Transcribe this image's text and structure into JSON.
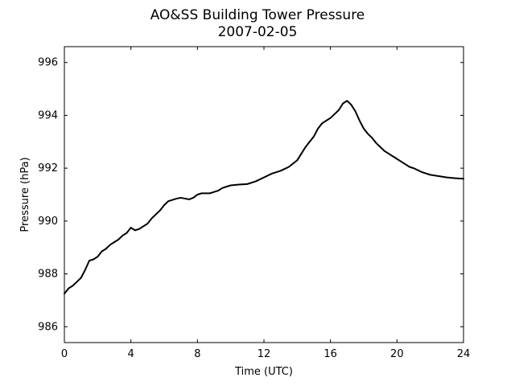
{
  "chart_data": {
    "type": "line",
    "title": "AO&SS Building Tower Pressure",
    "subtitle": "2007-02-05",
    "xlabel": "Time (UTC)",
    "ylabel": "Pressure (hPa)",
    "xlim": [
      0,
      24
    ],
    "ylim": [
      985.4,
      996.6
    ],
    "xticks": [
      0,
      4,
      8,
      12,
      16,
      20,
      24
    ],
    "yticks": [
      986,
      988,
      990,
      992,
      994,
      996
    ],
    "grid": false,
    "legend": "none",
    "series": [
      {
        "color": "#000000",
        "x": [
          0,
          0.25,
          0.5,
          0.75,
          1.0,
          1.25,
          1.5,
          1.75,
          2.0,
          2.25,
          2.5,
          2.75,
          3.0,
          3.25,
          3.5,
          3.75,
          4.0,
          4.25,
          4.5,
          4.75,
          5.0,
          5.25,
          5.5,
          5.75,
          6.0,
          6.25,
          6.5,
          6.75,
          7.0,
          7.25,
          7.5,
          7.75,
          8.0,
          8.25,
          8.5,
          8.75,
          9.0,
          9.25,
          9.5,
          9.75,
          10.0,
          10.5,
          11.0,
          11.5,
          12.0,
          12.5,
          13.0,
          13.5,
          14.0,
          14.25,
          14.5,
          14.75,
          15.0,
          15.25,
          15.5,
          15.75,
          16.0,
          16.25,
          16.5,
          16.75,
          17.0,
          17.25,
          17.5,
          17.75,
          18.0,
          18.25,
          18.5,
          18.75,
          19.0,
          19.25,
          19.5,
          19.75,
          20.0,
          20.25,
          20.5,
          20.75,
          21.0,
          21.5,
          22.0,
          22.5,
          23.0,
          23.5,
          24.0
        ],
        "y": [
          987.25,
          987.45,
          987.55,
          987.7,
          987.85,
          988.15,
          988.5,
          988.55,
          988.65,
          988.85,
          988.95,
          989.1,
          989.2,
          989.3,
          989.45,
          989.55,
          989.75,
          989.65,
          989.7,
          989.8,
          989.9,
          990.1,
          990.25,
          990.4,
          990.6,
          990.75,
          990.8,
          990.85,
          990.88,
          990.85,
          990.82,
          990.88,
          991.0,
          991.05,
          991.05,
          991.05,
          991.1,
          991.15,
          991.25,
          991.3,
          991.35,
          991.38,
          991.4,
          991.5,
          991.65,
          991.8,
          991.9,
          992.05,
          992.3,
          992.55,
          992.8,
          993.0,
          993.2,
          993.5,
          993.7,
          993.8,
          993.9,
          994.05,
          994.2,
          994.45,
          994.55,
          994.4,
          994.15,
          993.8,
          993.5,
          993.3,
          993.15,
          992.95,
          992.8,
          992.65,
          992.55,
          992.45,
          992.35,
          992.25,
          992.15,
          992.05,
          992.0,
          991.85,
          991.75,
          991.7,
          991.65,
          991.62,
          991.6
        ]
      }
    ]
  }
}
